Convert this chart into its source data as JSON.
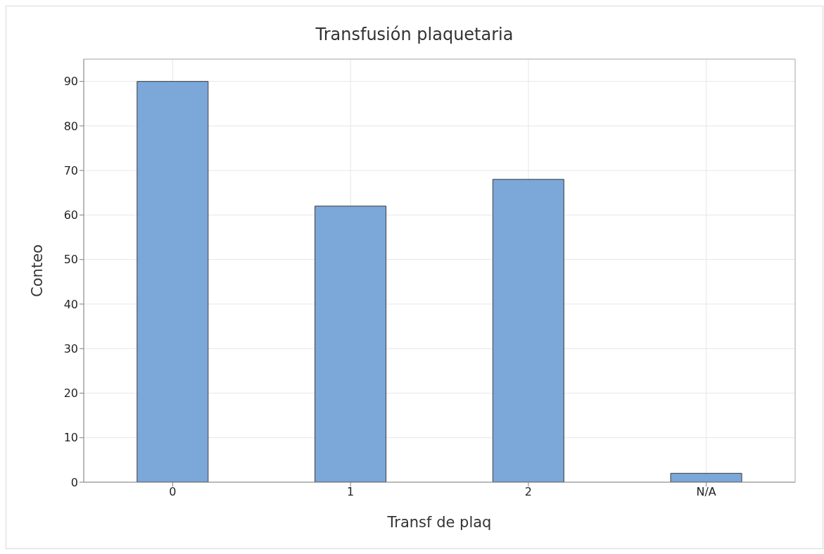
{
  "chart_data": {
    "type": "bar",
    "title": "Transfusión plaquetaria",
    "xlabel": "Transf de plaq",
    "ylabel": "Conteo",
    "categories": [
      "0",
      "1",
      "2",
      "N/A"
    ],
    "values": [
      90,
      62,
      68,
      2
    ],
    "color": "#7ba7d9",
    "ylim": [
      0,
      95
    ],
    "yticks": [
      0,
      10,
      20,
      30,
      40,
      50,
      60,
      70,
      80,
      90
    ],
    "grid": true
  }
}
